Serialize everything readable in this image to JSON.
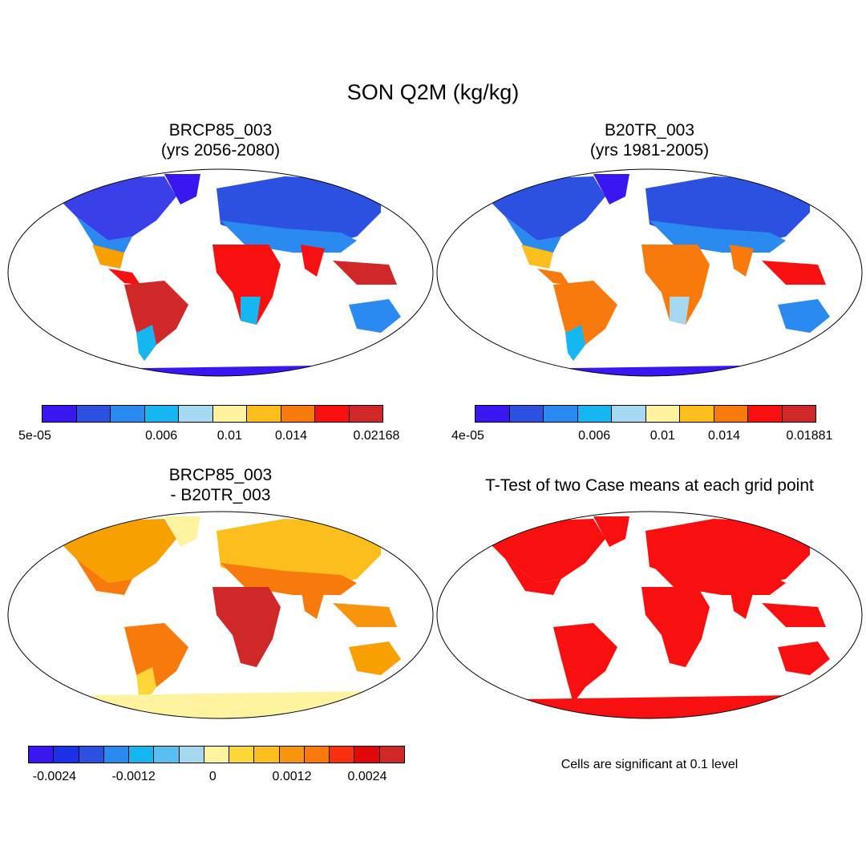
{
  "main_title": "SON Q2M (kg/kg)",
  "panels": {
    "top_left": {
      "title_line1": "BRCP85_003",
      "title_line2": "(yrs 2056-2080)"
    },
    "top_right": {
      "title_line1": "B20TR_003",
      "title_line2": "(yrs 1981-2005)"
    },
    "bottom_left": {
      "title_line1": "BRCP85_003",
      "title_line2": "- B20TR_003"
    },
    "bottom_right": {
      "title": "T-Test of two Case means at each grid point",
      "note": "Cells are significant at 0.1 level"
    }
  },
  "colorbars": {
    "top_left": {
      "colors": [
        "#3a16f0",
        "#2c50e0",
        "#2a8af0",
        "#16b6f0",
        "#a6d8f0",
        "#fff3a0",
        "#fcbe1c",
        "#f87a0c",
        "#f81010",
        "#d02828"
      ],
      "labels": [
        "5e-05",
        "0.006",
        "0.01",
        "0.014",
        "0.02168"
      ]
    },
    "top_right": {
      "colors": [
        "#3a16f0",
        "#2c50e0",
        "#2a8af0",
        "#16b6f0",
        "#a6d8f0",
        "#fff3a0",
        "#fcbe1c",
        "#f87a0c",
        "#f81010",
        "#d02828"
      ],
      "labels": [
        "4e-05",
        "0.006",
        "0.01",
        "0.014",
        "0.01881"
      ]
    },
    "bottom_left": {
      "colors": [
        "#3a16f0",
        "#1c30e8",
        "#2c50e0",
        "#2a8af0",
        "#16b6f0",
        "#58c0f0",
        "#a6d8f0",
        "#fff3a0",
        "#fed63a",
        "#fcbe1c",
        "#f8950c",
        "#f87a0c",
        "#f83010",
        "#e00808",
        "#d02828"
      ],
      "labels": [
        "-0.0024",
        "-0.0012",
        "0",
        "0.0012",
        "0.0024"
      ]
    }
  }
}
